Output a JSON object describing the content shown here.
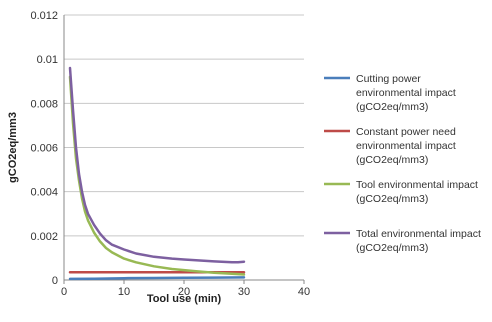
{
  "chart_data": {
    "type": "line",
    "title": "",
    "xlabel": "Tool use (min)",
    "ylabel": "gCO2eq/mm3",
    "xlim": [
      0,
      40
    ],
    "ylim": [
      0,
      0.012
    ],
    "x_ticks": [
      "0",
      "10",
      "20",
      "30",
      "40"
    ],
    "y_ticks": [
      "0",
      "0.002",
      "0.004",
      "0.006",
      "0.008",
      "0.01",
      "0.012"
    ],
    "grid": "horizontal",
    "legend_position": "right",
    "series": [
      {
        "name_lines": [
          "Cutting power",
          "environmental impact",
          "(gCO2eq/mm3)"
        ],
        "color": "#4a7ebb",
        "x": [
          1,
          5,
          10,
          15,
          20,
          25,
          30
        ],
        "y": [
          5e-05,
          6e-05,
          8e-05,
          9e-05,
          0.0001,
          0.00011,
          0.00012
        ]
      },
      {
        "name_lines": [
          "Constant power need",
          "environmental impact",
          "(gCO2eq/mm3)"
        ],
        "color": "#be4b48",
        "x": [
          1,
          5,
          10,
          15,
          20,
          25,
          30
        ],
        "y": [
          0.00035,
          0.00035,
          0.00035,
          0.00035,
          0.00035,
          0.00035,
          0.00035
        ]
      },
      {
        "name_lines": [
          "Tool environmental impact",
          "(gCO2eq/mm3)"
        ],
        "color": "#98b954",
        "x": [
          1,
          1.5,
          2,
          2.5,
          3,
          3.5,
          4,
          5,
          6,
          7,
          8,
          10,
          12,
          15,
          18,
          20,
          22,
          25,
          28,
          30
        ],
        "y": [
          0.0092,
          0.0071,
          0.0055,
          0.0045,
          0.0037,
          0.0031,
          0.0027,
          0.00215,
          0.00175,
          0.00145,
          0.00125,
          0.00097,
          0.0008,
          0.00062,
          0.0005,
          0.00045,
          0.0004,
          0.00033,
          0.00028,
          0.00025
        ]
      },
      {
        "name_lines": [
          "Total environmental impact",
          "(gCO2eq/mm3)"
        ],
        "color": "#7d60a0",
        "x": [
          1,
          1.5,
          2,
          2.5,
          3,
          3.5,
          4,
          5,
          6,
          7,
          8,
          10,
          12,
          15,
          18,
          20,
          22,
          25,
          28,
          29,
          30
        ],
        "y": [
          0.0096,
          0.0077,
          0.006,
          0.0048,
          0.004,
          0.0034,
          0.003,
          0.0025,
          0.0021,
          0.0018,
          0.0016,
          0.00138,
          0.0012,
          0.00105,
          0.00097,
          0.00093,
          0.00089,
          0.00084,
          0.0008,
          0.0008,
          0.00083
        ]
      }
    ]
  }
}
